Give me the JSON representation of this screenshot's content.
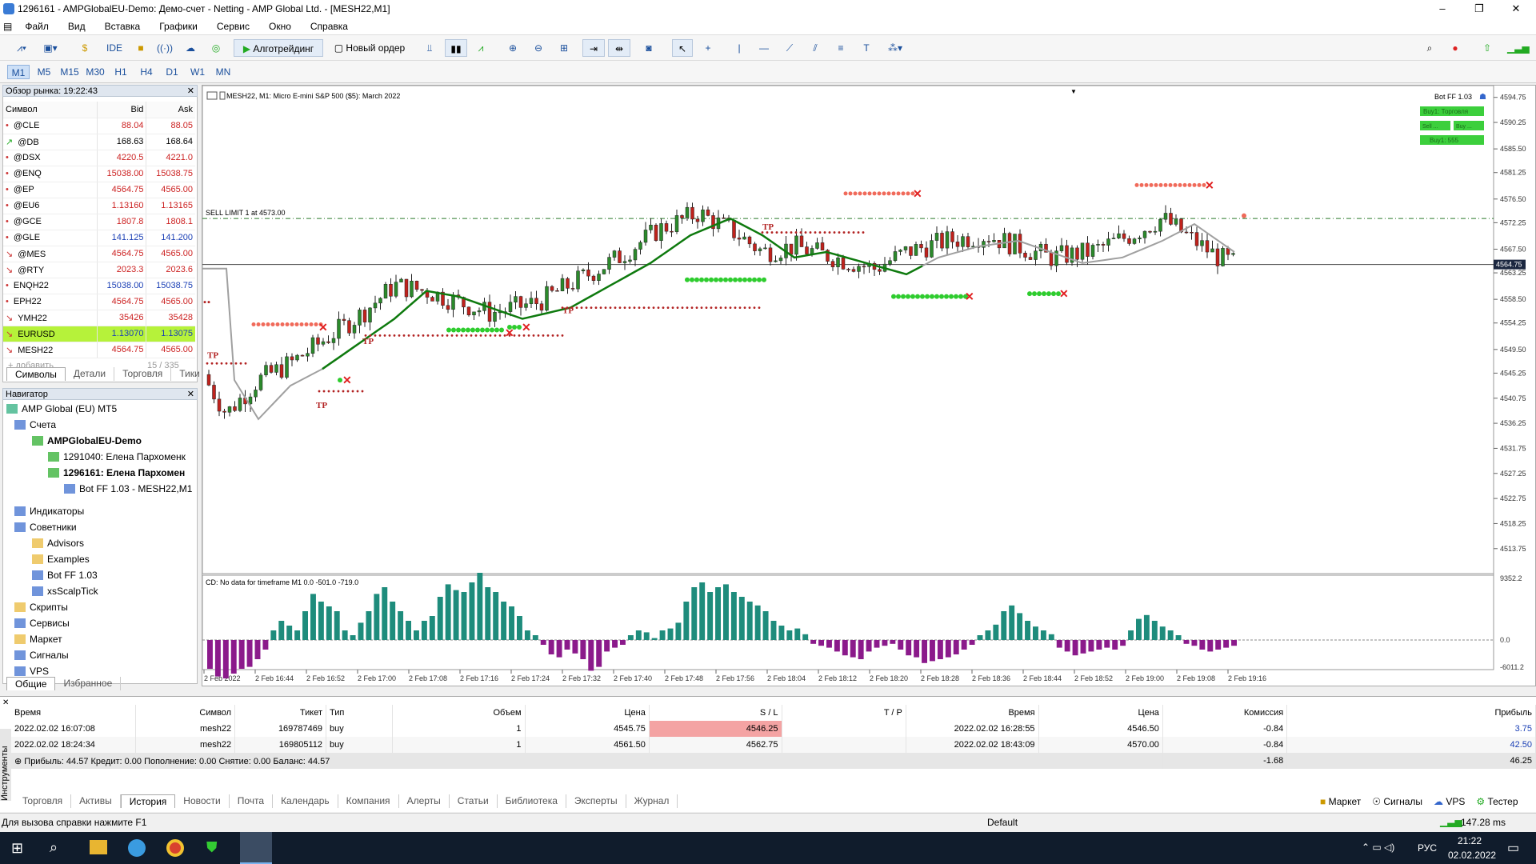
{
  "window": {
    "title": "1296161 - AMPGlobalEU-Demo: Демо-счет - Netting - AMP Global Ltd. - [MESH22,M1]"
  },
  "menu": [
    "Файл",
    "Вид",
    "Вставка",
    "Графики",
    "Сервис",
    "Окно",
    "Справка"
  ],
  "toolbar": {
    "ide": "IDE",
    "algo": "Алготрейдинг",
    "new_order": "Новый ордер"
  },
  "timeframes": [
    "M1",
    "M5",
    "M15",
    "M30",
    "H1",
    "H4",
    "D1",
    "W1",
    "MN"
  ],
  "market_watch": {
    "title": "Обзор рынка: 19:22:43",
    "col_symbol": "Символ",
    "col_bid": "Bid",
    "col_ask": "Ask",
    "add": "+ добавить",
    "count": "15 / 335",
    "rows": [
      {
        "symbol": "@CLE",
        "bid": "88.04",
        "ask": "88.05"
      },
      {
        "symbol": "@DB",
        "bid": "168.63",
        "ask": "168.64"
      },
      {
        "symbol": "@DSX",
        "bid": "4220.5",
        "ask": "4221.0"
      },
      {
        "symbol": "@ENQ",
        "bid": "15038.00",
        "ask": "15038.75"
      },
      {
        "symbol": "@EP",
        "bid": "4564.75",
        "ask": "4565.00"
      },
      {
        "symbol": "@EU6",
        "bid": "1.13160",
        "ask": "1.13165"
      },
      {
        "symbol": "@GCE",
        "bid": "1807.8",
        "ask": "1808.1"
      },
      {
        "symbol": "@GLE",
        "bid": "141.125",
        "ask": "141.200"
      },
      {
        "symbol": "@MES",
        "bid": "4564.75",
        "ask": "4565.00"
      },
      {
        "symbol": "@RTY",
        "bid": "2023.3",
        "ask": "2023.6"
      },
      {
        "symbol": "ENQH22",
        "bid": "15038.00",
        "ask": "15038.75"
      },
      {
        "symbol": "EPH22",
        "bid": "4564.75",
        "ask": "4565.00"
      },
      {
        "symbol": "YMH22",
        "bid": "35426",
        "ask": "35428"
      },
      {
        "symbol": "EURUSD",
        "bid": "1.13070",
        "ask": "1.13075"
      },
      {
        "symbol": "MESH22",
        "bid": "4564.75",
        "ask": "4565.00"
      }
    ],
    "tabs": [
      "Символы",
      "Детали",
      "Торговля",
      "Тики"
    ]
  },
  "navigator": {
    "title": "Навигатор",
    "items": [
      "AMP Global (EU) MT5",
      "Счета",
      "AMPGlobalEU-Demo",
      "1291040: Елена Пархоменк",
      "1296161: Елена Пархомен",
      "Bot FF 1.03 - MESH22,M1",
      "Индикаторы",
      "Советники",
      "Advisors",
      "Examples",
      "Bot FF 1.03",
      "xsScalpTick",
      "Скрипты",
      "Сервисы",
      "Маркет",
      "Сигналы",
      "VPS"
    ],
    "tabs": [
      "Общие",
      "Избранное"
    ]
  },
  "chart": {
    "header": "MESH22, M1:  Micro E-mini S&P 500 ($5): March 2022",
    "bot": "Bot FF 1.03",
    "btn1": "Buy1: Торговля",
    "btn2a": "Sell ...",
    "btn2b": "Buy ...",
    "btn3": "Buy1: 555",
    "sell_limit": "SELL LIMIT 1 at 4573.00",
    "current_price": "4564.75",
    "tp_label": "TP",
    "prices": [
      "4594.75",
      "4590.25",
      "4585.50",
      "4581.25",
      "4576.50",
      "4572.25",
      "4567.50",
      "4563.25",
      "4558.50",
      "4554.25",
      "4549.50",
      "4545.25",
      "4540.75",
      "4536.25",
      "4531.75",
      "4527.25",
      "4522.75",
      "4518.25",
      "4513.75"
    ],
    "times": [
      "2 Feb 2022",
      "2 Feb 16:44",
      "2 Feb 16:52",
      "2 Feb 17:00",
      "2 Feb 17:08",
      "2 Feb 17:16",
      "2 Feb 17:24",
      "2 Feb 17:32",
      "2 Feb 17:40",
      "2 Feb 17:48",
      "2 Feb 17:56",
      "2 Feb 18:04",
      "2 Feb 18:12",
      "2 Feb 18:20",
      "2 Feb 18:28",
      "2 Feb 18:36",
      "2 Feb 18:44",
      "2 Feb 18:52",
      "2 Feb 19:00",
      "2 Feb 19:08",
      "2 Feb 19:16"
    ],
    "sub_header": "CD: No data for timeframe M1 0.0 -501.0 -719.0",
    "sub_scale": [
      "9352.2",
      "0.0",
      "-6011.2"
    ]
  },
  "history": {
    "cols": [
      "Время",
      "Символ",
      "Тикет",
      "Тип",
      "Объем",
      "Цена",
      "S / L",
      "T / P",
      "Время",
      "Цена",
      "Комиссия",
      "Прибыль"
    ],
    "rows": [
      [
        "2022.02.02 16:07:08",
        "mesh22",
        "169787469",
        "buy",
        "1",
        "4545.75",
        "4546.25",
        "",
        "2022.02.02 16:28:55",
        "4546.50",
        "-0.84",
        "3.75"
      ],
      [
        "2022.02.02 18:24:34",
        "mesh22",
        "169805112",
        "buy",
        "1",
        "4561.50",
        "4562.75",
        "",
        "2022.02.02 18:43:09",
        "4570.00",
        "-0.84",
        "42.50"
      ]
    ],
    "summary": "Прибыль: 44.57  Кредит: 0.00  Пополнение: 0.00  Снятие: 0.00  Баланс: 44.57",
    "sum_comm": "-1.68",
    "sum_profit": "46.25",
    "tabs": [
      "Торговля",
      "Активы",
      "История",
      "Новости",
      "Почта",
      "Календарь",
      "Компания",
      "Алерты",
      "Статьи",
      "Библиотека",
      "Эксперты",
      "Журнал"
    ],
    "right": [
      "Маркет",
      "Сигналы",
      "VPS",
      "Тестер"
    ],
    "side": "Инструменты"
  },
  "status": {
    "help": "Для вызова справки нажмите F1",
    "profile": "Default",
    "ping": "147.28 ms"
  },
  "taskbar": {
    "lang": "РУС",
    "time": "21:22",
    "date": "02.02.2022"
  },
  "colors": {
    "bull": "#1e8c7c",
    "bear": "#8b1a8b",
    "ma_green": "#0e7a0e",
    "ma_gray": "#a0a0a0",
    "dot_red": "#f06a5a",
    "dot_green": "#2ecc2e",
    "tp": "#b22222"
  }
}
